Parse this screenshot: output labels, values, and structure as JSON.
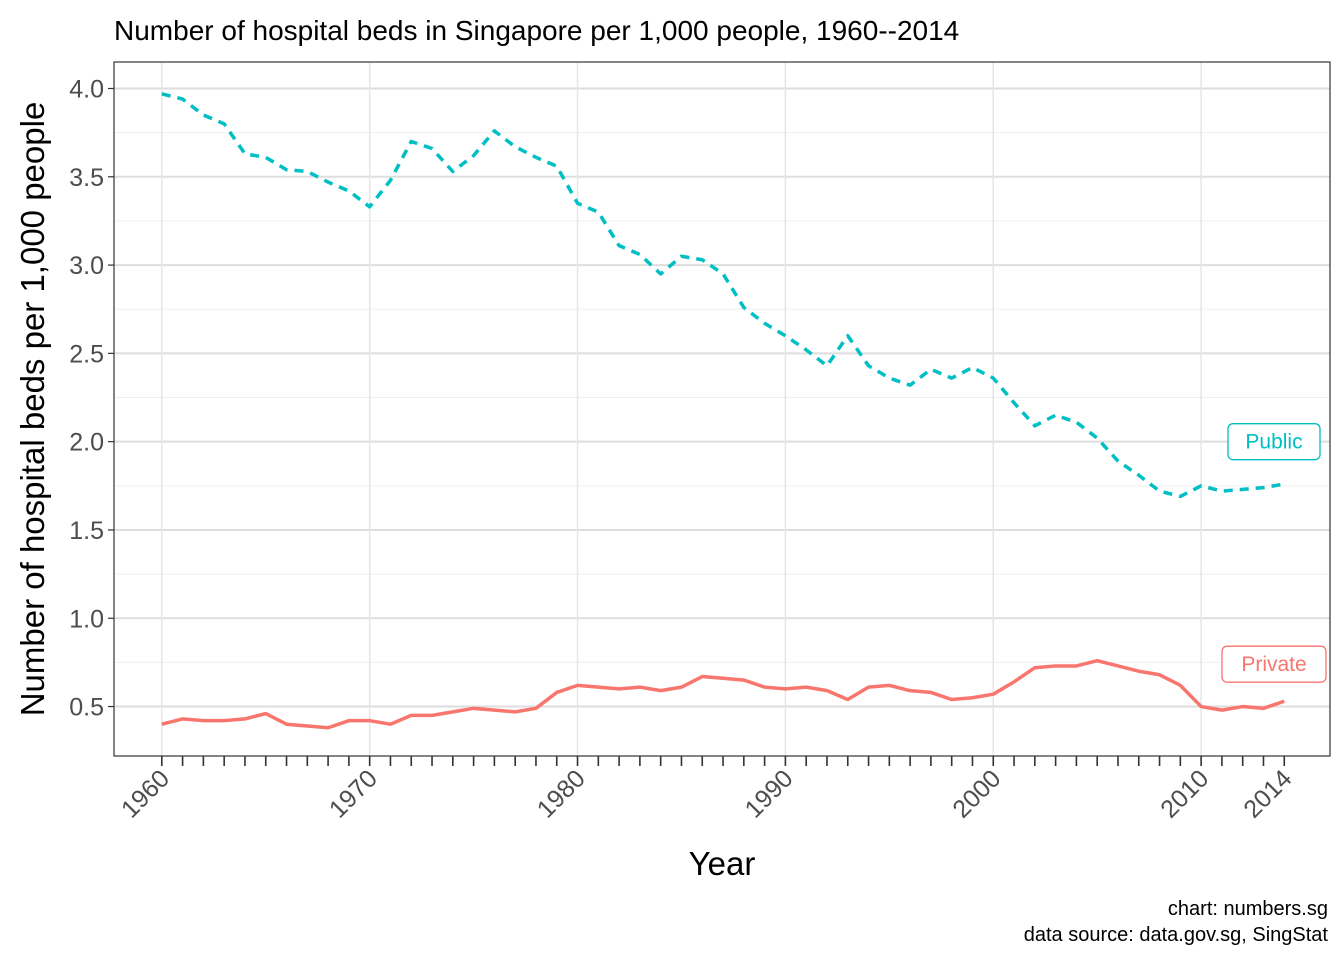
{
  "chart_data": {
    "type": "line",
    "title": "Number of hospital beds in Singapore per 1,000 people, 1960--2014",
    "xlabel": "Year",
    "ylabel": "Number of hospital beds per 1,000 people",
    "caption": [
      "chart: numbers.sg",
      "data source: data.gov.sg, SingStat"
    ],
    "x_ticks": [
      "1960",
      "1970",
      "1980",
      "1990",
      "2000",
      "2010",
      "2014"
    ],
    "y_ticks": [
      "0.5",
      "1.0",
      "1.5",
      "2.0",
      "2.5",
      "3.0",
      "3.5",
      "4.0"
    ],
    "xlim": [
      1957.7,
      2016.2
    ],
    "ylim": [
      0.22,
      4.15
    ],
    "grid": true,
    "series": [
      {
        "name": "Public",
        "color": "#00BFC4",
        "line_style": "dashed",
        "x": [
          1960,
          1961,
          1962,
          1963,
          1964,
          1965,
          1966,
          1967,
          1968,
          1969,
          1970,
          1971,
          1972,
          1973,
          1974,
          1975,
          1976,
          1977,
          1978,
          1979,
          1980,
          1981,
          1982,
          1983,
          1984,
          1985,
          1986,
          1987,
          1988,
          1989,
          1990,
          1991,
          1992,
          1993,
          1994,
          1995,
          1996,
          1997,
          1998,
          1999,
          2000,
          2001,
          2002,
          2003,
          2004,
          2005,
          2006,
          2007,
          2008,
          2009,
          2010,
          2011,
          2012,
          2013,
          2014
        ],
        "values": [
          3.97,
          3.94,
          3.85,
          3.8,
          3.63,
          3.61,
          3.54,
          3.53,
          3.47,
          3.42,
          3.33,
          3.48,
          3.7,
          3.66,
          3.53,
          3.62,
          3.76,
          3.67,
          3.61,
          3.56,
          3.35,
          3.3,
          3.11,
          3.06,
          2.95,
          3.05,
          3.03,
          2.95,
          2.76,
          2.67,
          2.6,
          2.52,
          2.43,
          2.6,
          2.43,
          2.36,
          2.32,
          2.41,
          2.36,
          2.42,
          2.36,
          2.22,
          2.09,
          2.15,
          2.11,
          2.02,
          1.89,
          1.81,
          1.72,
          1.69,
          1.75,
          1.72,
          1.73,
          1.74,
          1.76
        ]
      },
      {
        "name": "Private",
        "color": "#F8766D",
        "line_style": "solid",
        "x": [
          1960,
          1961,
          1962,
          1963,
          1964,
          1965,
          1966,
          1967,
          1968,
          1969,
          1970,
          1971,
          1972,
          1973,
          1974,
          1975,
          1976,
          1977,
          1978,
          1979,
          1980,
          1981,
          1982,
          1983,
          1984,
          1985,
          1986,
          1987,
          1988,
          1989,
          1990,
          1991,
          1992,
          1993,
          1994,
          1995,
          1996,
          1997,
          1998,
          1999,
          2000,
          2001,
          2002,
          2003,
          2004,
          2005,
          2006,
          2007,
          2008,
          2009,
          2010,
          2011,
          2012,
          2013,
          2014
        ],
        "values": [
          0.4,
          0.43,
          0.42,
          0.42,
          0.43,
          0.46,
          0.4,
          0.39,
          0.38,
          0.42,
          0.42,
          0.4,
          0.45,
          0.45,
          0.47,
          0.49,
          0.48,
          0.47,
          0.49,
          0.58,
          0.62,
          0.61,
          0.6,
          0.61,
          0.59,
          0.61,
          0.67,
          0.66,
          0.65,
          0.61,
          0.6,
          0.61,
          0.59,
          0.54,
          0.61,
          0.62,
          0.59,
          0.58,
          0.54,
          0.55,
          0.57,
          0.64,
          0.72,
          0.73,
          0.73,
          0.76,
          0.73,
          0.7,
          0.68,
          0.62,
          0.5,
          0.48,
          0.5,
          0.49,
          0.53
        ]
      }
    ]
  }
}
